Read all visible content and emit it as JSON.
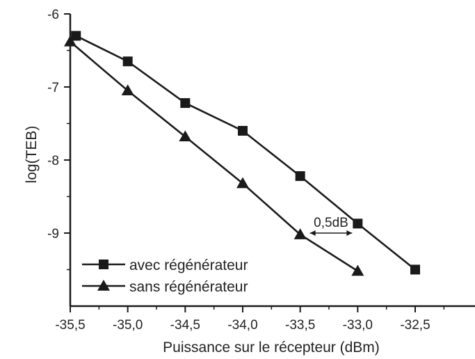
{
  "chart_data": {
    "type": "line",
    "xlabel": "Puissance sur le récepteur (dBm)",
    "ylabel": "log(TEB)",
    "xlim": [
      -35.5,
      -32.0
    ],
    "ylim": [
      -10.0,
      -6.0
    ],
    "x_ticks": [
      -35.5,
      -35.0,
      -34.5,
      -34.0,
      -33.5,
      -33.0,
      -32.5
    ],
    "x_tick_labels": [
      "-35,5",
      "-35,0",
      "-34,5",
      "-34,0",
      "-33,5",
      "-33,0",
      "-32,5"
    ],
    "y_ticks": [
      -6,
      -7,
      -8,
      -9
    ],
    "y_tick_labels": [
      "-6",
      "-7",
      "-8",
      "-9"
    ],
    "grid": false,
    "legend_position": "bottom-left",
    "series": [
      {
        "name": "avec régénérateur",
        "marker": "square",
        "color": "#1a1a1a",
        "x": [
          -35.45,
          -35.0,
          -34.5,
          -34.0,
          -33.5,
          -33.0,
          -32.5
        ],
        "y": [
          -6.3,
          -6.65,
          -7.22,
          -7.6,
          -8.22,
          -8.87,
          -9.5
        ]
      },
      {
        "name": "sans régénérateur",
        "marker": "triangle",
        "color": "#1a1a1a",
        "x": [
          -35.5,
          -35.0,
          -34.5,
          -34.0,
          -33.5,
          -33.0
        ],
        "y": [
          -6.38,
          -7.05,
          -7.68,
          -8.32,
          -9.02,
          -9.52
        ]
      }
    ],
    "annotations": [
      {
        "text": "0,5dB",
        "x1": -33.5,
        "x2": -33.0,
        "y": -9.0
      }
    ]
  }
}
